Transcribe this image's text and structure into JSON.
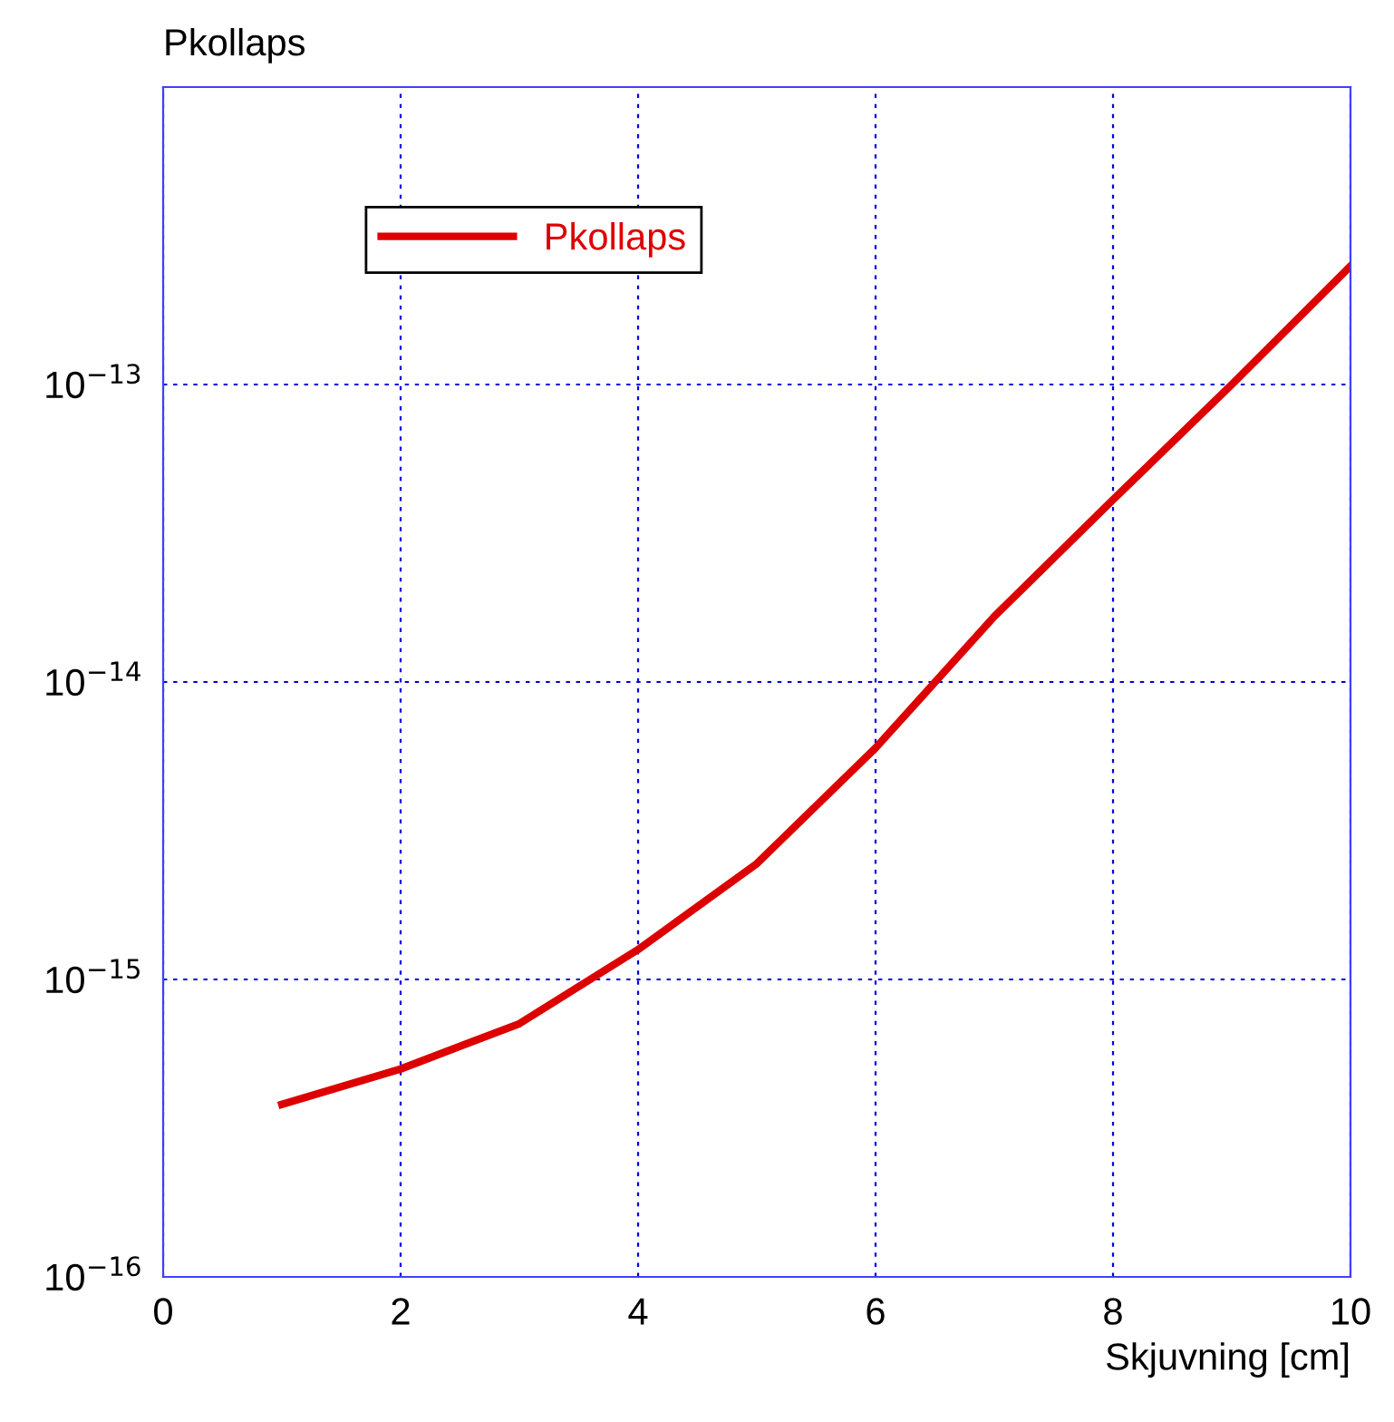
{
  "chart_data": {
    "type": "line",
    "ylabel": "Pkollaps",
    "xlabel": "Skjuvning [cm]",
    "x": [
      1,
      2,
      3,
      4,
      5,
      6,
      7,
      8,
      9,
      10
    ],
    "series": [
      {
        "name": "Pkollaps",
        "color": "#dd0000",
        "values": [
          3.8e-16,
          5e-16,
          7.1e-16,
          1.26e-15,
          2.45e-15,
          6e-15,
          1.66e-14,
          4.1e-14,
          1e-13,
          2.5e-13
        ]
      }
    ],
    "log": "y",
    "xlim": [
      0,
      10
    ],
    "xticks": [
      0,
      2,
      4,
      6,
      8,
      10
    ],
    "ylim": [
      1e-16,
      1e-12
    ],
    "yticks": [
      {
        "value": 1e-16,
        "label": "10$^{−16}$"
      },
      {
        "value": 1e-15,
        "label": "10$^{−15}$"
      },
      {
        "value": 1e-14,
        "label": "10$^{−14}$"
      },
      {
        "value": 1e-13,
        "label": "10$^{−13}$"
      },
      {
        "value": 1e-12,
        "label": null
      }
    ],
    "grid": true,
    "legend": "top left",
    "marker": "none",
    "line_style": "solid"
  }
}
